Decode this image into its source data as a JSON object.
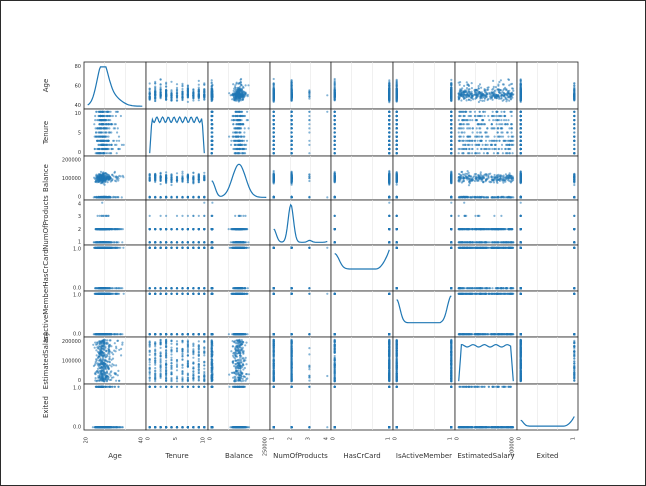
{
  "chart_data": {
    "type": "scatter-matrix",
    "variables": [
      "Age",
      "Tenure",
      "Balance",
      "NumOfProducts",
      "HasCrCard",
      "IsActiveMember",
      "EstimatedSalary",
      "Exited"
    ],
    "ranges": {
      "Age": [
        18,
        92
      ],
      "Tenure": [
        0,
        10
      ],
      "Balance": [
        0,
        250898
      ],
      "NumOfProducts": [
        1,
        4
      ],
      "HasCrCard": [
        0,
        1
      ],
      "IsActiveMember": [
        0,
        1
      ],
      "EstimatedSalary": [
        11.58,
        199992
      ],
      "Exited": [
        0,
        1
      ]
    },
    "row_tick_labels": {
      "Age": [
        "40",
        "60",
        "80"
      ],
      "Tenure": [
        "0",
        "5",
        "10"
      ],
      "Balance": [
        "0",
        "100000",
        "200000"
      ],
      "NumOfProducts": [
        "1",
        "2",
        "3",
        "4"
      ],
      "HasCrCard": [
        "0.0",
        "1.0"
      ],
      "IsActiveMember": [
        "0.0",
        "1.0"
      ],
      "EstimatedSalary": [
        "0",
        "100000",
        "200000"
      ],
      "Exited": [
        "0.0",
        "1.0"
      ]
    },
    "col_tick_labels": {
      "Age": [
        "20",
        "40"
      ],
      "Tenure": [
        "0",
        "5",
        "10"
      ],
      "Balance": [
        "0",
        "250000"
      ],
      "NumOfProducts": [
        "1",
        "2",
        "3",
        "4"
      ],
      "HasCrCard": [
        "0",
        "1"
      ],
      "IsActiveMember": [
        "0",
        "1"
      ],
      "EstimatedSalary": [
        "0",
        "200000"
      ],
      "Exited": [
        "0",
        "1"
      ]
    },
    "diagonal": "kde",
    "color": "#1f77b4"
  }
}
